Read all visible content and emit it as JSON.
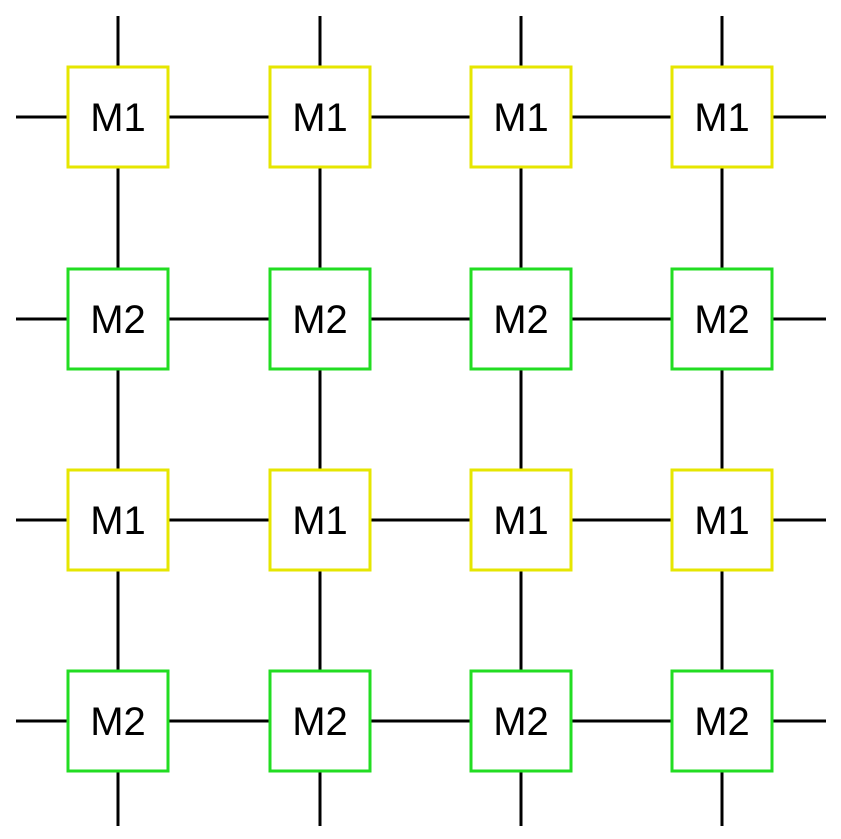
{
  "diagram": {
    "kind": "mesh-grid",
    "rows": 4,
    "columns": 4,
    "row_labels": [
      "M1",
      "M2",
      "M1",
      "M2"
    ],
    "label_colors": {
      "M1": "#e6e600",
      "M2": "#22dd22"
    },
    "wire_color": "#000000"
  }
}
